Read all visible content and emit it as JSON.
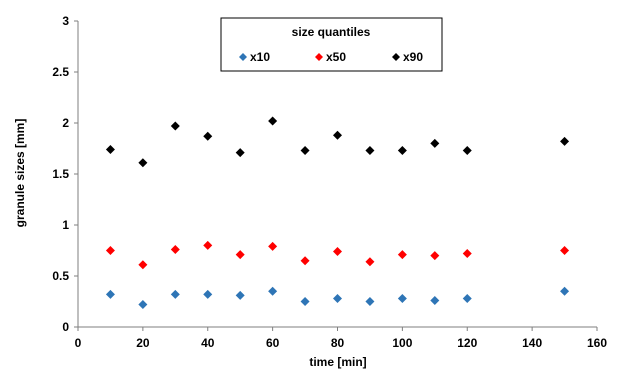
{
  "chart_data": {
    "type": "scatter",
    "xlabel": "time [min]",
    "ylabel": "granule sizes [mm]",
    "xlim": [
      0,
      160
    ],
    "ylim": [
      0,
      3
    ],
    "xticks": [
      0,
      20,
      40,
      60,
      80,
      100,
      120,
      140,
      160
    ],
    "yticks": [
      0,
      0.5,
      1,
      1.5,
      2,
      2.5,
      3
    ],
    "xtick_labels": [
      "0",
      "20",
      "40",
      "60",
      "80",
      "100",
      "120",
      "140",
      "160"
    ],
    "ytick_labels": [
      "0",
      "0.5",
      "1",
      "1.5",
      "2",
      "2.5",
      "3"
    ],
    "grid": false,
    "legend": {
      "title": "size quantiles",
      "placement": "top-center"
    },
    "x": [
      10,
      20,
      30,
      40,
      50,
      60,
      70,
      80,
      90,
      100,
      110,
      120,
      150
    ],
    "series": [
      {
        "name": "x10",
        "color": "#2E75B6",
        "marker": "diamond",
        "values": [
          0.32,
          0.22,
          0.32,
          0.32,
          0.31,
          0.35,
          0.25,
          0.28,
          0.25,
          0.28,
          0.26,
          0.28,
          0.35
        ]
      },
      {
        "name": "x50",
        "color": "#FF0000",
        "marker": "diamond",
        "values": [
          0.75,
          0.61,
          0.76,
          0.8,
          0.71,
          0.79,
          0.65,
          0.74,
          0.64,
          0.71,
          0.7,
          0.72,
          0.75
        ]
      },
      {
        "name": "x90",
        "color": "#000000",
        "marker": "diamond",
        "values": [
          1.74,
          1.61,
          1.97,
          1.87,
          1.71,
          2.02,
          1.73,
          1.88,
          1.73,
          1.73,
          1.8,
          1.73,
          1.82
        ]
      }
    ]
  }
}
